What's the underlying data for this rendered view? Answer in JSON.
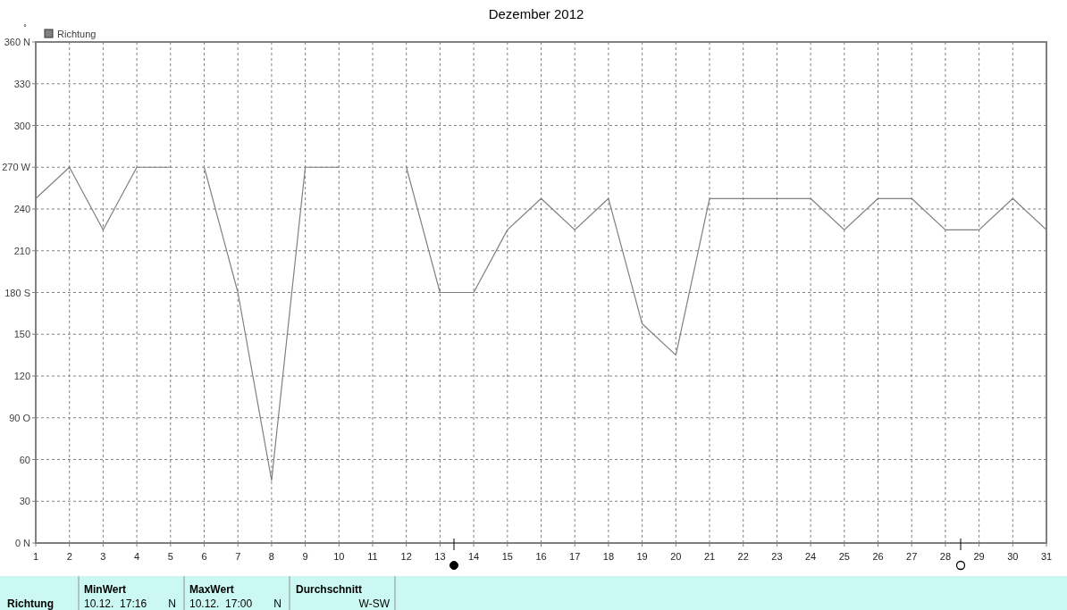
{
  "chart_data": {
    "type": "line",
    "title": "Dezember 2012",
    "ylabel": "°",
    "x": [
      1,
      2,
      3,
      4,
      5,
      5.5,
      6,
      7,
      8,
      9,
      10,
      11,
      12,
      13,
      14,
      15,
      16,
      17,
      18,
      19,
      20,
      21,
      22,
      23,
      24,
      25,
      26,
      27,
      28,
      29,
      30,
      31
    ],
    "series": [
      {
        "name": "Richtung",
        "color": "#808080",
        "values": [
          247.5,
          270,
          225,
          270,
          270,
          null,
          270,
          180,
          45,
          270,
          270,
          null,
          270,
          180,
          180,
          225,
          247.5,
          225,
          247.5,
          157.5,
          135,
          247.5,
          247.5,
          247.5,
          247.5,
          225,
          247.5,
          247.5,
          225,
          225,
          247.5,
          225
        ]
      }
    ],
    "xlim": [
      1,
      31
    ],
    "xticks": [
      1,
      2,
      3,
      4,
      5,
      6,
      7,
      8,
      9,
      10,
      11,
      12,
      13,
      14,
      15,
      16,
      17,
      18,
      19,
      20,
      21,
      22,
      23,
      24,
      25,
      26,
      27,
      28,
      29,
      30,
      31
    ],
    "ylim": [
      0,
      360
    ],
    "yticks": [
      {
        "value": 0,
        "label": "0 N"
      },
      30,
      60,
      {
        "value": 90,
        "label": "90 O"
      },
      120,
      150,
      {
        "value": 180,
        "label": "180 S"
      },
      210,
      240,
      {
        "value": 270,
        "label": "270 W"
      },
      300,
      330,
      {
        "value": 360,
        "label": "360 N"
      }
    ],
    "grid": true,
    "legend": "top left",
    "line_style": "solid",
    "marker": "none",
    "annotations": [
      "Richtung",
      "MinWert",
      "10.12.  17:16",
      "N",
      "MaxWert",
      "10.12.  17:00",
      "N",
      "Durchschnitt",
      "W-SW"
    ]
  }
}
